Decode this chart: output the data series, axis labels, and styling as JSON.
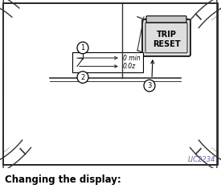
{
  "title": "Changing the display:",
  "watermark": "LIC2234",
  "trip_reset_label": "TRIP\nRESET",
  "callout1": "1",
  "callout2": "2",
  "callout3": "3",
  "display_line1": "0 min",
  "display_line2": "0.0z",
  "border_color": "#000000",
  "bg_color": "#ffffff",
  "line_color": "#333333",
  "font_color": "#000000",
  "watermark_color": "#6666aa",
  "title_fontsize": 8.5,
  "gauge_lw": 1.0,
  "tick_lw": 0.7
}
